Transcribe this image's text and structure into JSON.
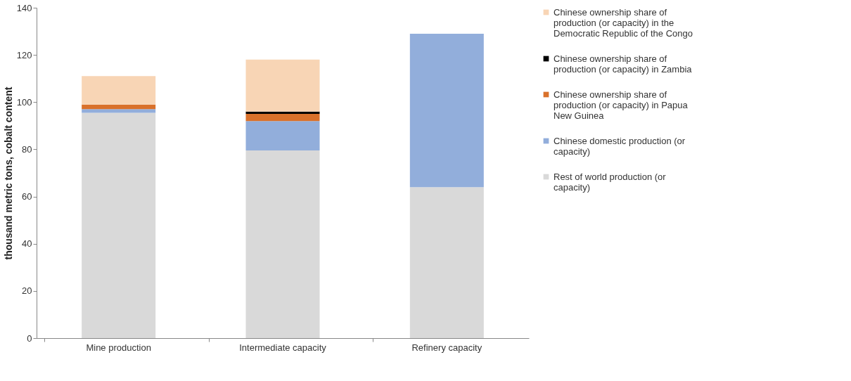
{
  "chart_data": {
    "type": "bar",
    "stacked": true,
    "ylabel": "thousand metric tons, cobalt content",
    "categories": [
      "Mine production",
      "Intermediate capacity",
      "Refinery capacity"
    ],
    "ylim": [
      0,
      140
    ],
    "yticks": [
      0,
      20,
      40,
      60,
      80,
      100,
      120,
      140
    ],
    "grid": false,
    "legend": "right",
    "series": [
      {
        "name": "Rest of world production (or capacity)",
        "color": "#d9d9d9",
        "values": [
          95.5,
          79.5,
          64
        ]
      },
      {
        "name": "Chinese domestic production (or capacity)",
        "color": "#92aedb",
        "values": [
          1.5,
          12.5,
          65
        ]
      },
      {
        "name": "Chinese ownership share of production (or capacity) in Papua New Guinea",
        "color": "#d9712b",
        "values": [
          2,
          3,
          0
        ]
      },
      {
        "name": "Chinese ownership share of production (or capacity) in Zambia",
        "color": "#000000",
        "values": [
          0,
          1,
          0
        ]
      },
      {
        "name": "Chinese ownership share of production (or capacity) in the Democratic Republic of the Congo",
        "color": "#f8d5b5",
        "values": [
          12,
          22,
          0
        ]
      }
    ]
  }
}
